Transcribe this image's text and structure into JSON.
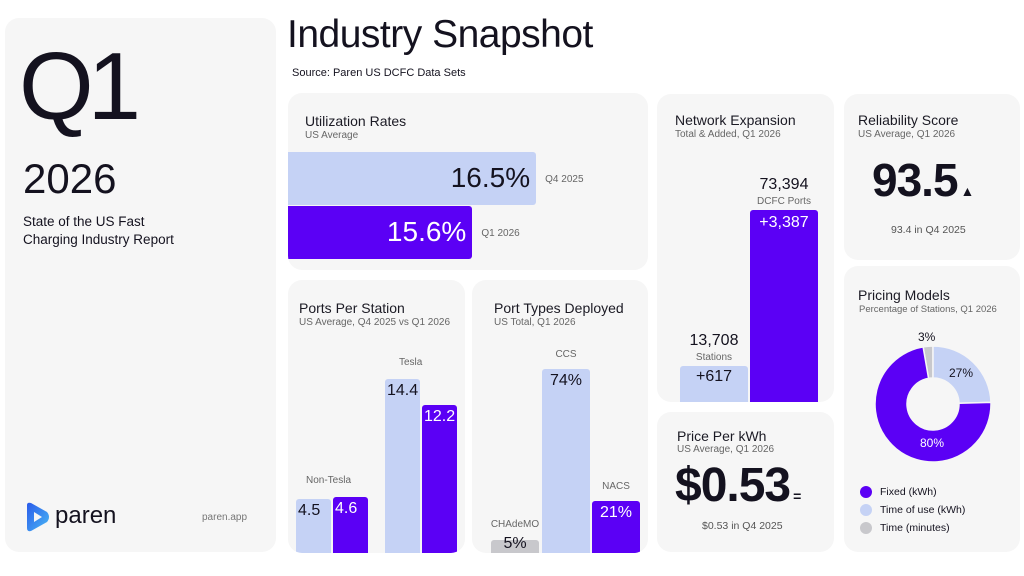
{
  "colors": {
    "current": "#5b00f5",
    "previous": "#c5d2f5",
    "other": "#c8c8cc",
    "card": "#f6f6f6"
  },
  "cover": {
    "quarter": "Q1",
    "year": "2026",
    "subtitle_line1": "State of the US Fast",
    "subtitle_line2": "Charging Industry Report",
    "brand": "paren",
    "website": "paren.app"
  },
  "header": {
    "title": "Industry Snapshot",
    "source": "Source: Paren US DCFC Data Sets"
  },
  "chart_data": [
    {
      "type": "bar",
      "title": "Utilization Rates",
      "subtitle": "US Average",
      "orientation": "horizontal",
      "categories": [
        "Q4 2025",
        "Q1 2026"
      ],
      "values": [
        16.5,
        15.6
      ],
      "value_labels": [
        "16.5%",
        "15.6%"
      ]
    },
    {
      "type": "bar",
      "title": "Ports Per Station",
      "subtitle": "US Average, Q4 2025 vs Q1 2026",
      "categories": [
        "Non-Tesla",
        "Tesla"
      ],
      "series": [
        {
          "values": [
            4.5,
            14.4
          ],
          "value_labels": [
            "4.5",
            "14.4"
          ]
        },
        {
          "values": [
            4.6,
            12.2
          ],
          "value_labels": [
            "4.6",
            "12.2"
          ]
        }
      ]
    },
    {
      "type": "bar",
      "title": "Port Types Deployed",
      "subtitle": "US Total, Q1 2026",
      "categories": [
        "CHAdeMO",
        "CCS",
        "NACS"
      ],
      "values": [
        5,
        74,
        21
      ],
      "value_labels": [
        "5%",
        "74%",
        "21%"
      ]
    },
    {
      "type": "bar",
      "title": "Network Expansion",
      "subtitle": "Total & Added, Q1 2026",
      "categories": [
        "Stations",
        "DCFC Ports"
      ],
      "values": [
        13708,
        73394
      ],
      "totals": [
        "13,708",
        "73,394"
      ],
      "added": [
        "+617",
        "+3,387"
      ]
    },
    {
      "type": "pie",
      "title": "Pricing Models",
      "subtitle": "Percentage of Stations, Q1 2026",
      "categories": [
        "Fixed (kWh)",
        "Time of use (kWh)",
        "Time (minutes)"
      ],
      "values": [
        80,
        27,
        3
      ],
      "value_labels": [
        "80%",
        "27%",
        "3%"
      ]
    }
  ],
  "reliability": {
    "title": "Reliability Score",
    "subtitle": "US Average, Q1 2026",
    "value": "93.5",
    "trend": "up",
    "trend_glyph": "▲",
    "previous": "93.4 in Q4 2025"
  },
  "price": {
    "title": "Price Per kWh",
    "subtitle": "US Average, Q1 2026",
    "value": "$0.53",
    "trend": "flat",
    "trend_glyph": "=",
    "previous": "$0.53 in Q4 2025"
  }
}
